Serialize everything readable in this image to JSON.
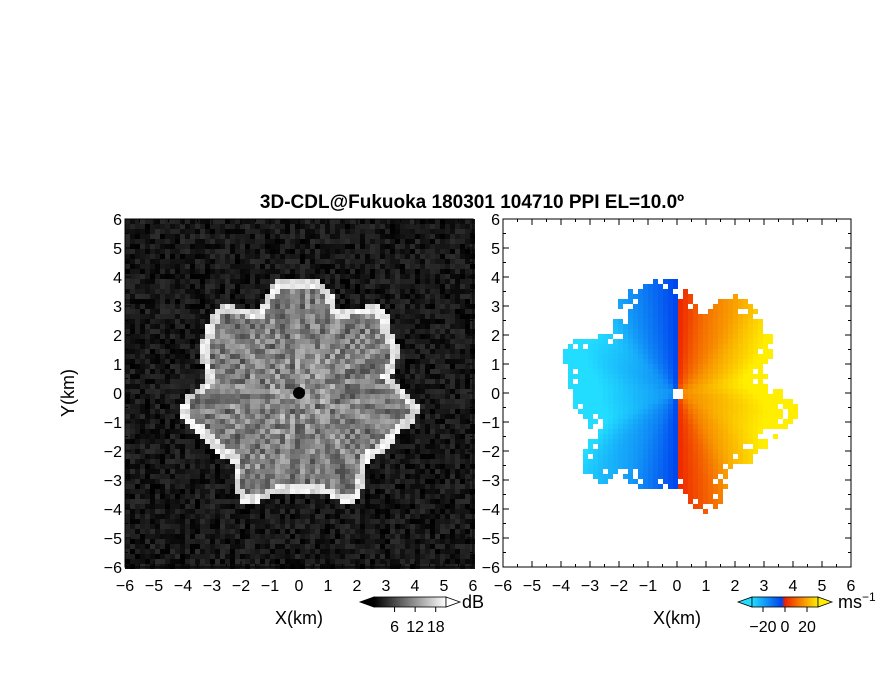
{
  "title": "3D-CDL@Fukuoka 180301 104710 PPI EL=10.0º",
  "chart_data": [
    {
      "type": "heatmap",
      "panel": "left",
      "quantity": "backscatter intensity",
      "xlabel": "X(km)",
      "ylabel": "Y(km)",
      "xlim": [
        -6,
        6
      ],
      "ylim": [
        -6,
        6
      ],
      "xticks": [
        "−6",
        "−5",
        "−4",
        "−3",
        "−2",
        "−1",
        "0",
        "1",
        "2",
        "3",
        "4",
        "5",
        "6"
      ],
      "yticks": [
        "6",
        "5",
        "4",
        "3",
        "2",
        "1",
        "0",
        "−1",
        "−2",
        "−3",
        "−4",
        "−5",
        "−6"
      ],
      "data_range_km": 4.0,
      "colorbar": {
        "unit": "dB",
        "ticks": [
          "6",
          "12",
          "18"
        ],
        "tick_values": [
          6,
          12,
          18
        ],
        "range": [
          0,
          21
        ],
        "colors": [
          "#000000",
          "#ffffff"
        ],
        "extend": "both"
      }
    },
    {
      "type": "heatmap",
      "panel": "right",
      "quantity": "radial velocity",
      "xlabel": "X(km)",
      "ylabel": "",
      "xlim": [
        -6,
        6
      ],
      "ylim": [
        -6,
        6
      ],
      "xticks": [
        "−6",
        "−5",
        "−4",
        "−3",
        "−2",
        "−1",
        "0",
        "1",
        "2",
        "3",
        "4",
        "5",
        "6"
      ],
      "yticks": [
        "6",
        "5",
        "4",
        "3",
        "2",
        "1",
        "0",
        "−1",
        "−2",
        "−3",
        "−4",
        "−5",
        "−6"
      ],
      "data_range_km": 4.0,
      "colorbar": {
        "unit": "ms",
        "unit_exp": "−1",
        "ticks": [
          "−20",
          "0",
          "20"
        ],
        "tick_values": [
          -20,
          0,
          20
        ],
        "range": [
          -30,
          30
        ],
        "colors": [
          "#22ddff",
          "#0044ee",
          "#ee2200",
          "#ffee00"
        ],
        "extend": "both"
      }
    }
  ]
}
